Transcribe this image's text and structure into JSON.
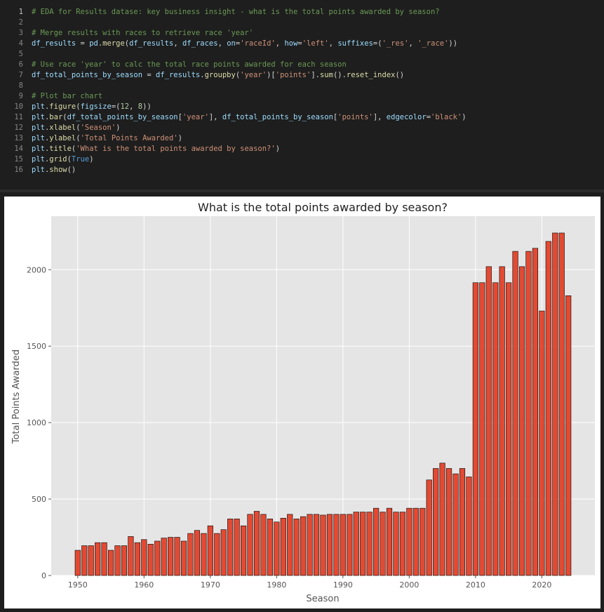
{
  "code": {
    "lines": [
      {
        "n": "1",
        "tokens": [
          {
            "t": "# EDA for Results datase: key business insight - what is the total points awarded by season?",
            "c": "com"
          }
        ]
      },
      {
        "n": "2",
        "tokens": []
      },
      {
        "n": "3",
        "tokens": [
          {
            "t": "# Merge results with races to retrieve race 'year'",
            "c": "com"
          }
        ]
      },
      {
        "n": "4",
        "tokens": [
          {
            "t": "df_results",
            "c": "var"
          },
          {
            "t": " = ",
            "c": "op"
          },
          {
            "t": "pd",
            "c": "var"
          },
          {
            "t": ".",
            "c": "op"
          },
          {
            "t": "merge",
            "c": "fn"
          },
          {
            "t": "(",
            "c": "op"
          },
          {
            "t": "df_results",
            "c": "var"
          },
          {
            "t": ", ",
            "c": "op"
          },
          {
            "t": "df_races",
            "c": "var"
          },
          {
            "t": ", ",
            "c": "op"
          },
          {
            "t": "on",
            "c": "var"
          },
          {
            "t": "=",
            "c": "op"
          },
          {
            "t": "'raceId'",
            "c": "str"
          },
          {
            "t": ", ",
            "c": "op"
          },
          {
            "t": "how",
            "c": "var"
          },
          {
            "t": "=",
            "c": "op"
          },
          {
            "t": "'left'",
            "c": "str"
          },
          {
            "t": ", ",
            "c": "op"
          },
          {
            "t": "suffixes",
            "c": "var"
          },
          {
            "t": "=(",
            "c": "op"
          },
          {
            "t": "'_res'",
            "c": "str"
          },
          {
            "t": ", ",
            "c": "op"
          },
          {
            "t": "'_race'",
            "c": "str"
          },
          {
            "t": "))",
            "c": "op"
          }
        ]
      },
      {
        "n": "5",
        "tokens": []
      },
      {
        "n": "6",
        "tokens": [
          {
            "t": "# Use race 'year' to calc the total race points awarded for each season",
            "c": "com"
          }
        ]
      },
      {
        "n": "7",
        "tokens": [
          {
            "t": "df_total_points_by_season",
            "c": "var"
          },
          {
            "t": " = ",
            "c": "op"
          },
          {
            "t": "df_results",
            "c": "var"
          },
          {
            "t": ".",
            "c": "op"
          },
          {
            "t": "groupby",
            "c": "fn"
          },
          {
            "t": "(",
            "c": "op"
          },
          {
            "t": "'year'",
            "c": "str"
          },
          {
            "t": ")[",
            "c": "op"
          },
          {
            "t": "'points'",
            "c": "str"
          },
          {
            "t": "].",
            "c": "op"
          },
          {
            "t": "sum",
            "c": "fn"
          },
          {
            "t": "().",
            "c": "op"
          },
          {
            "t": "reset_index",
            "c": "fn"
          },
          {
            "t": "()",
            "c": "op"
          }
        ]
      },
      {
        "n": "8",
        "tokens": []
      },
      {
        "n": "9",
        "tokens": [
          {
            "t": "# Plot bar chart",
            "c": "com"
          }
        ]
      },
      {
        "n": "10",
        "tokens": [
          {
            "t": "plt",
            "c": "var"
          },
          {
            "t": ".",
            "c": "op"
          },
          {
            "t": "figure",
            "c": "fn"
          },
          {
            "t": "(",
            "c": "op"
          },
          {
            "t": "figsize",
            "c": "var"
          },
          {
            "t": "=(",
            "c": "op"
          },
          {
            "t": "12",
            "c": "num"
          },
          {
            "t": ", ",
            "c": "op"
          },
          {
            "t": "8",
            "c": "num"
          },
          {
            "t": "))",
            "c": "op"
          }
        ]
      },
      {
        "n": "11",
        "tokens": [
          {
            "t": "plt",
            "c": "var"
          },
          {
            "t": ".",
            "c": "op"
          },
          {
            "t": "bar",
            "c": "fn"
          },
          {
            "t": "(",
            "c": "op"
          },
          {
            "t": "df_total_points_by_season",
            "c": "var"
          },
          {
            "t": "[",
            "c": "op"
          },
          {
            "t": "'year'",
            "c": "str"
          },
          {
            "t": "], ",
            "c": "op"
          },
          {
            "t": "df_total_points_by_season",
            "c": "var"
          },
          {
            "t": "[",
            "c": "op"
          },
          {
            "t": "'points'",
            "c": "str"
          },
          {
            "t": "], ",
            "c": "op"
          },
          {
            "t": "edgecolor",
            "c": "var"
          },
          {
            "t": "=",
            "c": "op"
          },
          {
            "t": "'black'",
            "c": "str"
          },
          {
            "t": ")",
            "c": "op"
          }
        ]
      },
      {
        "n": "12",
        "tokens": [
          {
            "t": "plt",
            "c": "var"
          },
          {
            "t": ".",
            "c": "op"
          },
          {
            "t": "xlabel",
            "c": "fn"
          },
          {
            "t": "(",
            "c": "op"
          },
          {
            "t": "'Season'",
            "c": "str"
          },
          {
            "t": ")",
            "c": "op"
          }
        ]
      },
      {
        "n": "13",
        "tokens": [
          {
            "t": "plt",
            "c": "var"
          },
          {
            "t": ".",
            "c": "op"
          },
          {
            "t": "ylabel",
            "c": "fn"
          },
          {
            "t": "(",
            "c": "op"
          },
          {
            "t": "'Total Points Awarded'",
            "c": "str"
          },
          {
            "t": ")",
            "c": "op"
          }
        ]
      },
      {
        "n": "14",
        "tokens": [
          {
            "t": "plt",
            "c": "var"
          },
          {
            "t": ".",
            "c": "op"
          },
          {
            "t": "title",
            "c": "fn"
          },
          {
            "t": "(",
            "c": "op"
          },
          {
            "t": "'What is the total points awarded by season?'",
            "c": "str"
          },
          {
            "t": ")",
            "c": "op"
          }
        ]
      },
      {
        "n": "15",
        "tokens": [
          {
            "t": "plt",
            "c": "var"
          },
          {
            "t": ".",
            "c": "op"
          },
          {
            "t": "grid",
            "c": "fn"
          },
          {
            "t": "(",
            "c": "op"
          },
          {
            "t": "True",
            "c": "kw"
          },
          {
            "t": ")",
            "c": "op"
          }
        ]
      },
      {
        "n": "16",
        "tokens": [
          {
            "t": "plt",
            "c": "var"
          },
          {
            "t": ".",
            "c": "op"
          },
          {
            "t": "show",
            "c": "fn"
          },
          {
            "t": "()",
            "c": "op"
          }
        ]
      }
    ]
  },
  "colors": {
    "bar_fill": "#e24a33",
    "bar_edge": "#000000",
    "plot_bg": "#e5e5e5",
    "grid": "#ffffff"
  },
  "chart_data": {
    "type": "bar",
    "title": "What is the total points awarded by season?",
    "xlabel": "Season",
    "ylabel": "Total Points Awarded",
    "grid": true,
    "xlim": [
      1946,
      2028
    ],
    "ylim": [
      0,
      2350
    ],
    "xticks": [
      1950,
      1960,
      1970,
      1980,
      1990,
      2000,
      2010,
      2020
    ],
    "yticks": [
      0,
      500,
      1000,
      1500,
      2000
    ],
    "x": [
      1950,
      1951,
      1952,
      1953,
      1954,
      1955,
      1956,
      1957,
      1958,
      1959,
      1960,
      1961,
      1962,
      1963,
      1964,
      1965,
      1966,
      1967,
      1968,
      1969,
      1970,
      1971,
      1972,
      1973,
      1974,
      1975,
      1976,
      1977,
      1978,
      1979,
      1980,
      1981,
      1982,
      1983,
      1984,
      1985,
      1986,
      1987,
      1988,
      1989,
      1990,
      1991,
      1992,
      1993,
      1994,
      1995,
      1996,
      1997,
      1998,
      1999,
      2000,
      2001,
      2002,
      2003,
      2004,
      2005,
      2006,
      2007,
      2008,
      2009,
      2010,
      2011,
      2012,
      2013,
      2014,
      2015,
      2016,
      2017,
      2018,
      2019,
      2020,
      2021,
      2022,
      2023,
      2024
    ],
    "values": [
      165,
      195,
      195,
      215,
      215,
      165,
      195,
      195,
      255,
      215,
      235,
      205,
      225,
      245,
      250,
      250,
      225,
      275,
      295,
      275,
      325,
      275,
      300,
      370,
      370,
      325,
      400,
      420,
      400,
      370,
      350,
      375,
      400,
      370,
      385,
      400,
      400,
      395,
      400,
      400,
      400,
      400,
      415,
      415,
      415,
      440,
      415,
      440,
      415,
      415,
      440,
      440,
      440,
      625,
      700,
      735,
      700,
      665,
      700,
      645,
      1915,
      1915,
      2020,
      1915,
      2020,
      1915,
      2120,
      2020,
      2120,
      2140,
      1730,
      2185,
      2240,
      2240,
      1830
    ]
  }
}
